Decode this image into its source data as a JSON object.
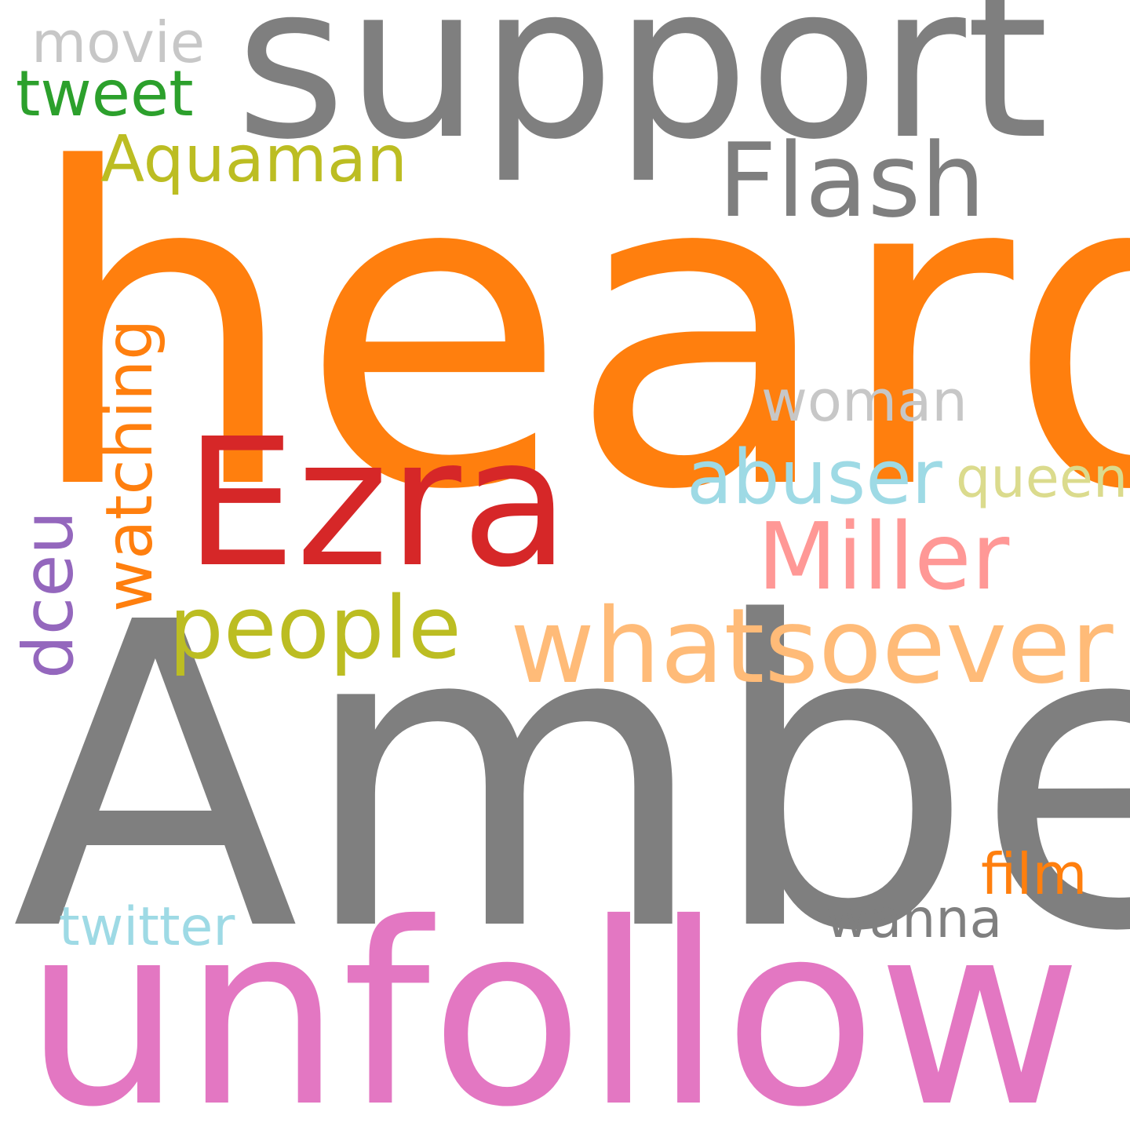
{
  "words": {
    "heard": {
      "text": "heard",
      "color": "#ff7f0e"
    },
    "amber": {
      "text": "Amber",
      "color": "#7f7f7f"
    },
    "unfollow": {
      "text": "unfollow",
      "color": "#e377c2"
    },
    "support": {
      "text": "support",
      "color": "#7f7f7f"
    },
    "ezra": {
      "text": "Ezra",
      "color": "#d62728"
    },
    "whatsoever": {
      "text": "whatsoever",
      "color": "#ffbb78"
    },
    "flash": {
      "text": "Flash",
      "color": "#7f7f7f"
    },
    "miller": {
      "text": "Miller",
      "color": "#ff9896"
    },
    "people": {
      "text": "people",
      "color": "#bcbd22"
    },
    "abuser": {
      "text": "abuser",
      "color": "#9edae5"
    },
    "aquaman": {
      "text": "Aquaman",
      "color": "#bcbd22"
    },
    "tweet": {
      "text": "tweet",
      "color": "#2ca02c"
    },
    "movie": {
      "text": "movie",
      "color": "#c7c7c7"
    },
    "woman": {
      "text": "woman",
      "color": "#c7c7c7"
    },
    "queen": {
      "text": "queen",
      "color": "#dbdb8d"
    },
    "film": {
      "text": "film",
      "color": "#ff7f0e"
    },
    "wanna": {
      "text": "wanna",
      "color": "#7f7f7f"
    },
    "twitter": {
      "text": "twitter",
      "color": "#9edae5"
    },
    "watching": {
      "text": "watching",
      "color": "#ff7f0e"
    },
    "dceu": {
      "text": "dceu",
      "color": "#9467bd"
    }
  }
}
